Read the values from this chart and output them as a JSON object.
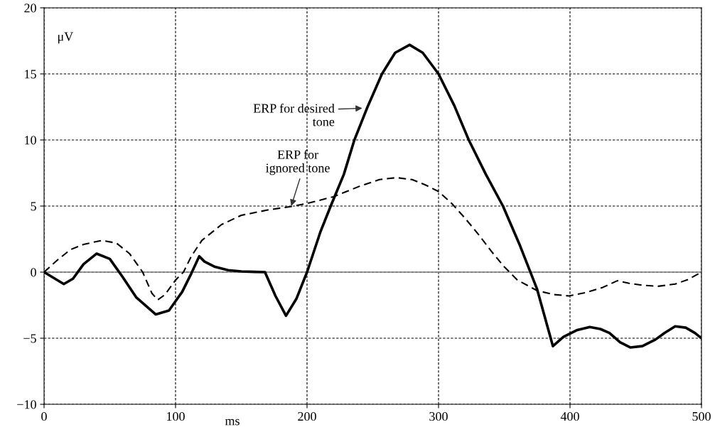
{
  "chart_data": {
    "type": "line",
    "xlabel": "ms",
    "ylabel": "μV",
    "xlim": [
      0,
      500
    ],
    "ylim": [
      -10,
      20
    ],
    "xticks": [
      0,
      100,
      200,
      300,
      400,
      500
    ],
    "yticks": [
      -10,
      -5,
      0,
      5,
      10,
      15,
      20
    ],
    "grid": true,
    "marker": "none",
    "ref_lines": [
      {
        "axis": "y",
        "value": 0,
        "color": "#808080",
        "line_style": "solid"
      }
    ],
    "series": [
      {
        "color": "#000000",
        "line_style": "solid",
        "x": [
          0,
          15,
          22,
          30,
          40,
          50,
          60,
          70,
          85,
          95,
          105,
          112,
          118,
          122,
          130,
          140,
          150,
          160,
          168,
          176,
          184,
          192,
          200,
          210,
          218,
          228,
          236,
          246,
          257,
          267,
          278,
          288,
          300,
          312,
          323,
          336,
          349,
          362,
          375,
          387,
          395,
          405,
          415,
          423,
          430,
          438,
          446,
          455,
          465,
          472,
          480,
          488,
          495,
          500
        ],
        "values": [
          0,
          -0.9,
          -0.5,
          0.6,
          1.4,
          1.0,
          -0.4,
          -1.9,
          -3.2,
          -2.9,
          -1.5,
          -0.1,
          1.2,
          0.8,
          0.4,
          0.15,
          0.05,
          0.02,
          0,
          -1.8,
          -3.3,
          -2.0,
          0,
          3.0,
          5.0,
          7.4,
          10,
          12.5,
          15,
          16.6,
          17.2,
          16.6,
          15,
          12.6,
          10,
          7.4,
          5,
          2.0,
          -1.3,
          -5.6,
          -4.9,
          -4.4,
          -4.15,
          -4.3,
          -4.6,
          -5.3,
          -5.7,
          -5.6,
          -5.1,
          -4.6,
          -4.1,
          -4.2,
          -4.6,
          -5.0
        ]
      },
      {
        "color": "#000000",
        "line_style": "dashed",
        "x": [
          0,
          10,
          20,
          30,
          44,
          55,
          65,
          75,
          82,
          86.5,
          92,
          100,
          106,
          112,
          120,
          135,
          150,
          170,
          190,
          200,
          220,
          240,
          255,
          268,
          280,
          290,
          300,
          310,
          320,
          330,
          340,
          350,
          360,
          375,
          388,
          399,
          412,
          425,
          436,
          445,
          456,
          467,
          480,
          490,
          500
        ],
        "values": [
          0,
          0.9,
          1.7,
          2.1,
          2.4,
          2.2,
          1.4,
          0,
          -1.6,
          -2.1,
          -1.7,
          -0.6,
          0,
          1.2,
          2.4,
          3.6,
          4.3,
          4.7,
          5.0,
          5.2,
          5.7,
          6.5,
          7.0,
          7.15,
          7.0,
          6.6,
          6.1,
          5.2,
          4.1,
          2.9,
          1.6,
          0.4,
          -0.6,
          -1.4,
          -1.7,
          -1.8,
          -1.55,
          -1.15,
          -0.65,
          -0.85,
          -1.0,
          -1.07,
          -0.9,
          -0.55,
          0
        ]
      }
    ],
    "annotations": [
      {
        "text": "ERP for desired\ntone",
        "x": 242,
        "y": 12.4
      },
      {
        "text": "ERP for\nignored tone",
        "x": 188,
        "y": 5.0
      }
    ]
  }
}
